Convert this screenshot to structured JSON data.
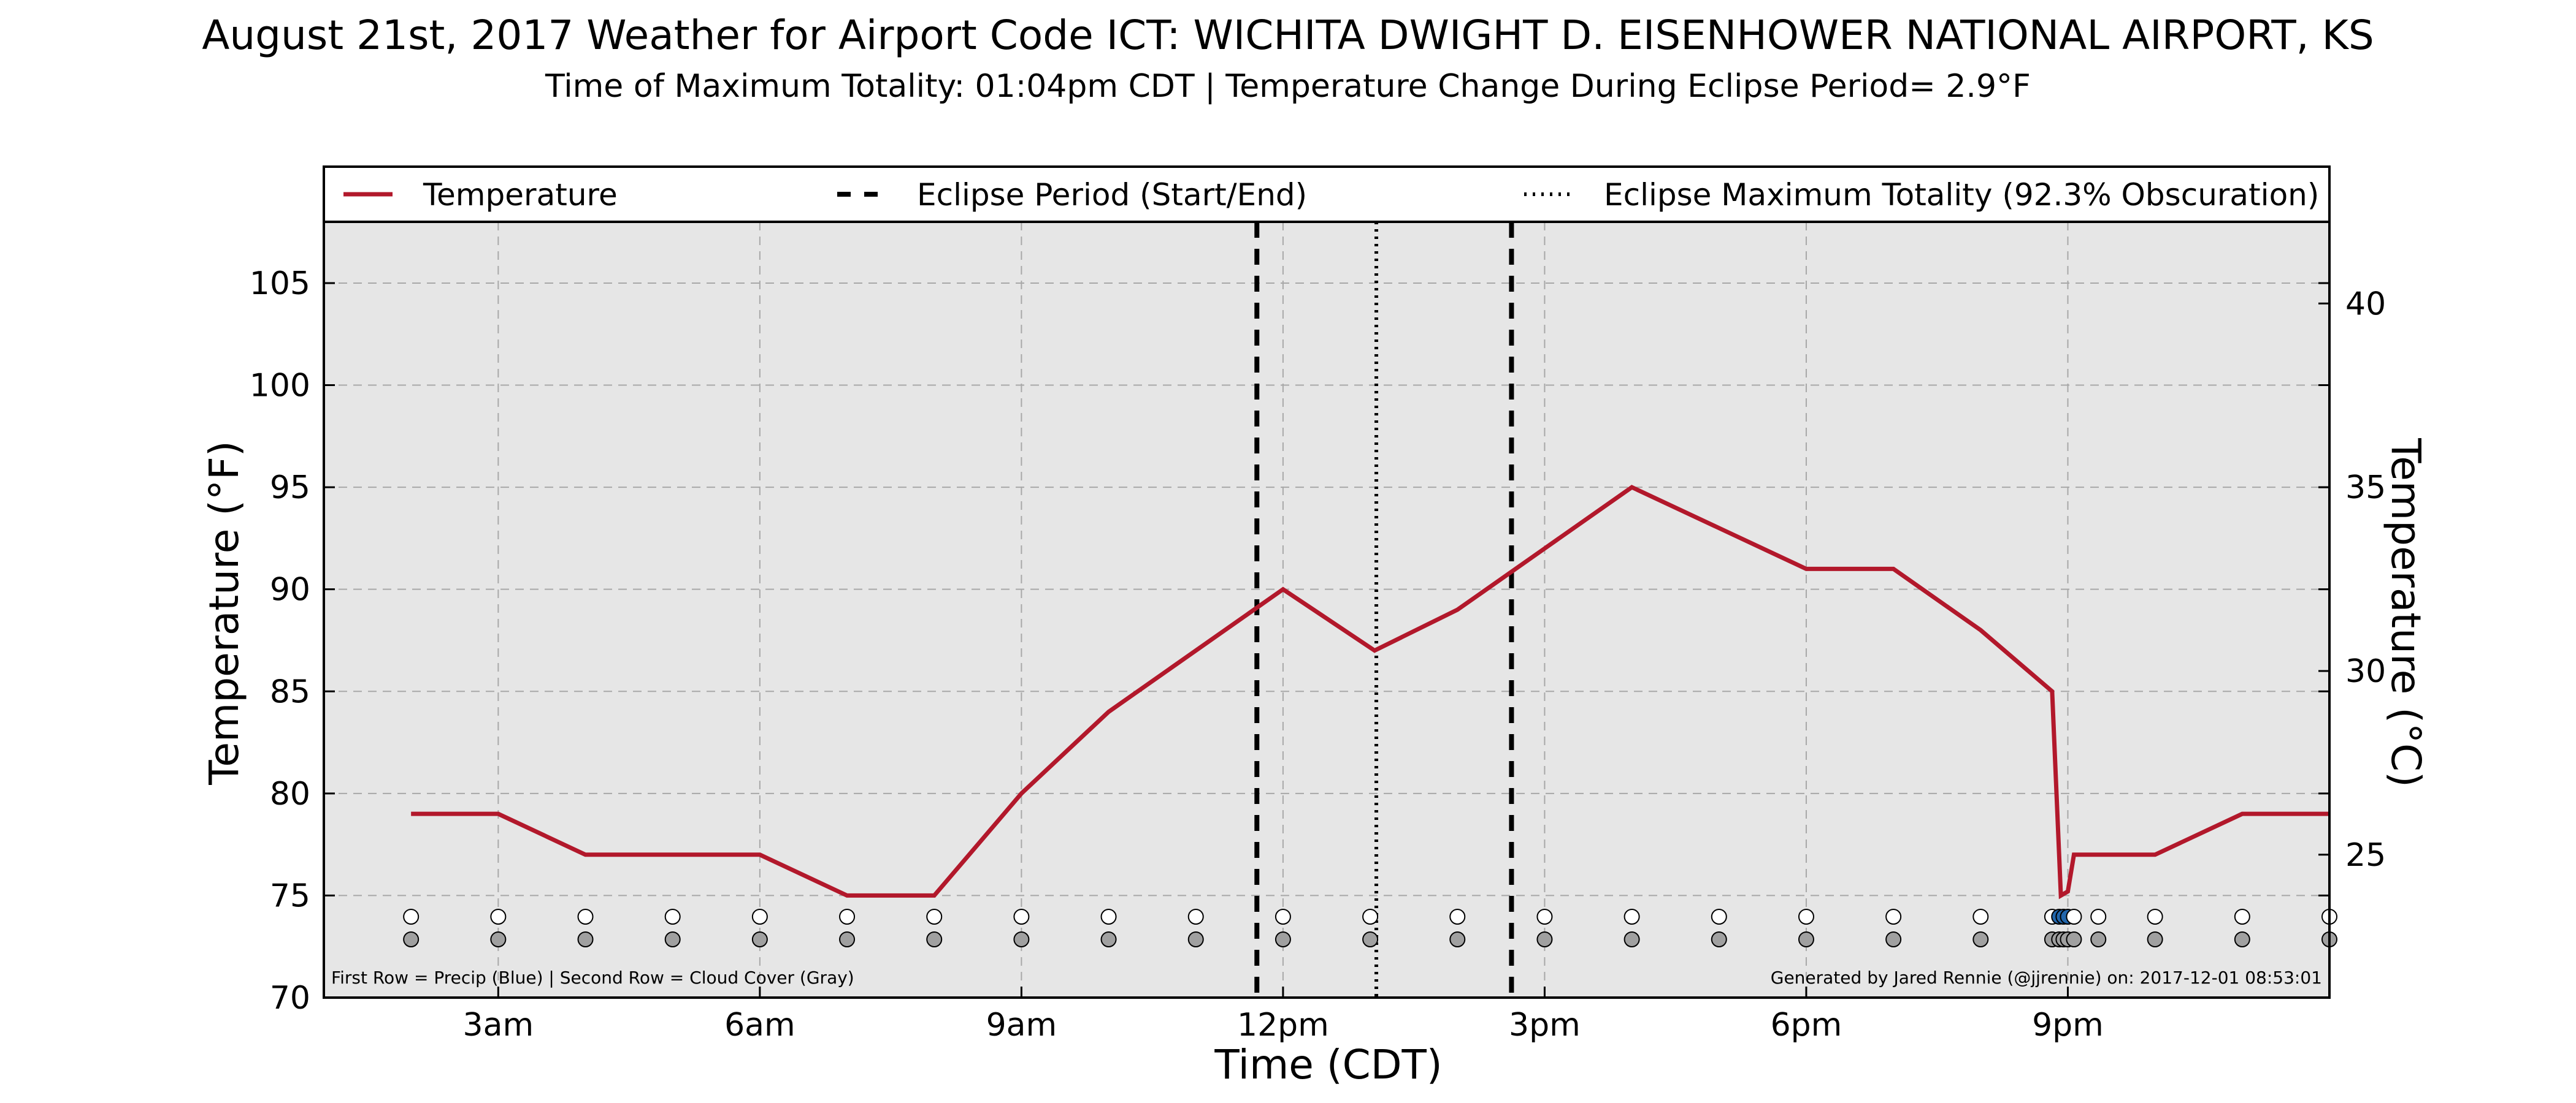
{
  "chart_data": {
    "type": "line",
    "title": "August 21st, 2017 Weather for Airport Code ICT: WICHITA DWIGHT D. EISENHOWER NATIONAL AIRPORT, KS",
    "subtitle": "Time of Maximum Totality: 01:04pm CDT | Temperature Change During Eclipse Period= 2.9°F",
    "xlabel": "Time (CDT)",
    "ylabel": "Temperature (°F)",
    "ylabel_right": "Temperature (°C)",
    "x_tick_labels": [
      {
        "x": 3,
        "label": "3am"
      },
      {
        "x": 6,
        "label": "6am"
      },
      {
        "x": 9,
        "label": "9am"
      },
      {
        "x": 12,
        "label": "12pm"
      },
      {
        "x": 15,
        "label": "3pm"
      },
      {
        "x": 18,
        "label": "6pm"
      },
      {
        "x": 21,
        "label": "9pm"
      }
    ],
    "xlim": [
      1,
      24
    ],
    "ylim": [
      70,
      108
    ],
    "y_ticks": [
      70,
      75,
      80,
      85,
      90,
      95,
      100,
      105
    ],
    "y_ticks_right": [
      25,
      30,
      35,
      40
    ],
    "grid": true,
    "legend_position": "top",
    "colors": {
      "temperature": "#b2182b",
      "plot_bg": "#e6e6e6",
      "precip": "#2166ac",
      "cloud": "#a0a0a0",
      "grid": "#a8a8a8"
    },
    "series": [
      {
        "name": "Temperature",
        "points": [
          [
            2,
            79
          ],
          [
            3,
            79
          ],
          [
            4,
            77
          ],
          [
            5,
            77
          ],
          [
            6,
            77
          ],
          [
            7,
            75
          ],
          [
            8,
            75
          ],
          [
            9,
            80
          ],
          [
            10,
            84
          ],
          [
            11,
            87
          ],
          [
            12,
            90
          ],
          [
            13.05,
            87
          ],
          [
            14,
            89
          ],
          [
            15,
            92
          ],
          [
            16,
            95
          ],
          [
            17,
            93
          ],
          [
            18,
            91
          ],
          [
            19,
            91
          ],
          [
            20,
            88
          ],
          [
            20.82,
            85
          ],
          [
            20.92,
            75
          ],
          [
            21,
            75.2
          ],
          [
            21.07,
            77
          ],
          [
            22,
            77
          ],
          [
            23,
            79
          ],
          [
            24,
            79
          ]
        ]
      }
    ],
    "legend": [
      {
        "label": "Temperature",
        "style": "solid"
      },
      {
        "label": "Eclipse Period (Start/End)",
        "style": "dashed"
      },
      {
        "label": "Eclipse Maximum Totality (92.3% Obscuration)",
        "style": "dotted"
      }
    ],
    "eclipse": {
      "start": 11.7,
      "max": 13.07,
      "end": 14.62
    },
    "observation_times": [
      2,
      3,
      4,
      5,
      6,
      7,
      8,
      9,
      10,
      11,
      12,
      13,
      14,
      15,
      16,
      17,
      18,
      19,
      20,
      20.82,
      20.9,
      20.95,
      21.0,
      21.07,
      21.35,
      22,
      23,
      24
    ],
    "precip_flags": [
      0,
      0,
      0,
      0,
      0,
      0,
      0,
      0,
      0,
      0,
      0,
      0,
      0,
      0,
      0,
      0,
      0,
      0,
      0,
      0,
      1,
      1,
      1,
      0,
      0,
      0,
      0,
      0
    ],
    "footnote_left": "First Row = Precip (Blue) | Second Row = Cloud Cover (Gray)",
    "footnote_right": "Generated by Jared Rennie (@jjrennie) on: 2017-12-01 08:53:01"
  }
}
